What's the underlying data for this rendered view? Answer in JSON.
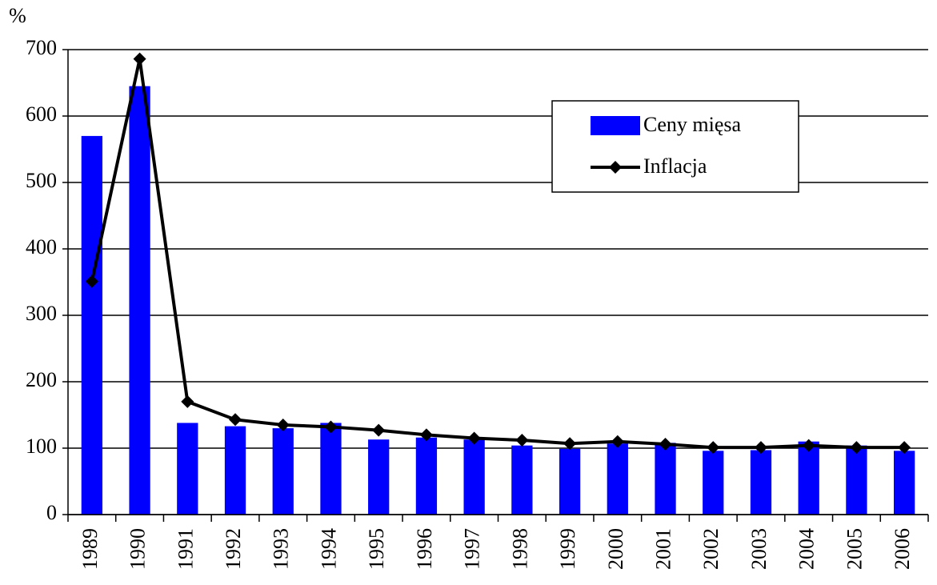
{
  "chart_data": {
    "type": "bar",
    "y_axis_label": "%",
    "categories": [
      "1989",
      "1990",
      "1991",
      "1992",
      "1993",
      "1994",
      "1995",
      "1996",
      "1997",
      "1998",
      "1999",
      "2000",
      "2001",
      "2002",
      "2003",
      "2004",
      "2005",
      "2006"
    ],
    "series": [
      {
        "name": "Ceny mięsa",
        "type": "bar",
        "color": "#0000ff",
        "values": [
          570,
          645,
          138,
          133,
          130,
          138,
          113,
          116,
          113,
          104,
          99,
          107,
          108,
          96,
          97,
          110,
          104,
          96
        ]
      },
      {
        "name": "Inflacja",
        "type": "line",
        "color": "#000000",
        "values": [
          351,
          686,
          170,
          143,
          135,
          132,
          127,
          120,
          115,
          112,
          107,
          110,
          106,
          101,
          101,
          104,
          101,
          101
        ]
      }
    ],
    "ylim": [
      0,
      700
    ],
    "yticks": [
      0,
      100,
      200,
      300,
      400,
      500,
      600,
      700
    ],
    "grid": true,
    "legend": "upper right"
  }
}
